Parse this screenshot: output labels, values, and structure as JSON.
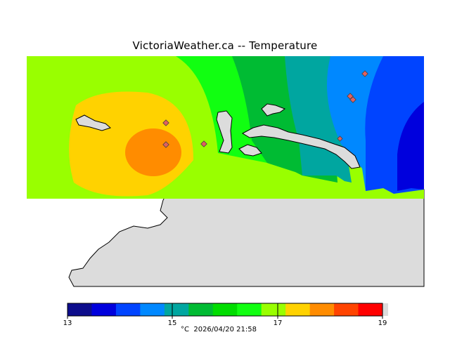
{
  "title": "VictoriaWeather.ca -- Temperature",
  "legend": {
    "ticks": [
      "13",
      "15",
      "17",
      "19"
    ],
    "unit": "°C",
    "timestamp": "2026/04/20 21:58",
    "colors": [
      "#0d0d8c",
      "#0000dd",
      "#0044ff",
      "#0088ff",
      "#00a6a0",
      "#00bb33",
      "#00dd00",
      "#11ff11",
      "#99ff00",
      "#ffd200",
      "#ff8c00",
      "#ff4400",
      "#ff0000"
    ]
  },
  "colors": {
    "land": "#dcdcdc",
    "coast": "#000000",
    "station_marker": "#e06060"
  }
}
